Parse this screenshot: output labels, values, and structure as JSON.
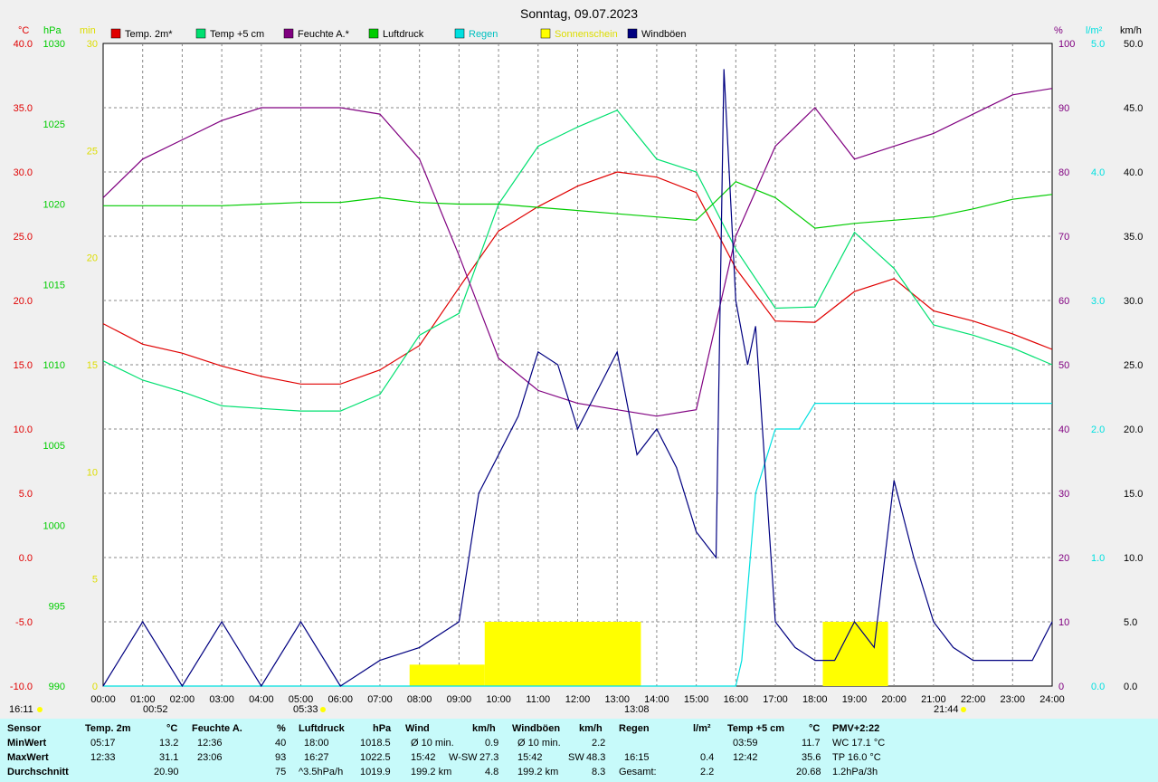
{
  "title": "Sonntag, 09.07.2023",
  "colors": {
    "temp2m": "#e00000",
    "temp5cm": "#00e070",
    "feuchte": "#800080",
    "luftdruck": "#00cc00",
    "regen": "#00e0e0",
    "sonne": "#ffff00",
    "wind": "#000080"
  },
  "axes_units": {
    "left1": "°C",
    "left2": "hPa",
    "left3": "min",
    "right1": "%",
    "right2": "l/m²",
    "right3": "km/h"
  },
  "legend": [
    {
      "label": "Temp. 2m*",
      "color": "#e00000"
    },
    {
      "label": "Temp +5 cm",
      "color": "#00e070"
    },
    {
      "label": "Feuchte A.*",
      "color": "#800080"
    },
    {
      "label": "Luftdruck",
      "color": "#00cc00"
    },
    {
      "label": "Regen",
      "color": "#00e0e0"
    },
    {
      "label": "Sonnenschein",
      "color": "#ffff00"
    },
    {
      "label": "Windböen",
      "color": "#000080"
    }
  ],
  "chart_data": {
    "type": "line",
    "title": "Sonntag, 09.07.2023",
    "x_ticks": [
      "00:00",
      "01:00",
      "02:00",
      "03:00",
      "04:00",
      "05:00",
      "06:00",
      "07:00",
      "08:00",
      "09:00",
      "10:00",
      "11:00",
      "12:00",
      "13:00",
      "14:00",
      "15:00",
      "16:00",
      "17:00",
      "18:00",
      "19:00",
      "20:00",
      "21:00",
      "22:00",
      "23:00",
      "24:00"
    ],
    "y_axes": {
      "temp_c": {
        "ticks": [
          "40.0",
          "35.0",
          "30.0",
          "25.0",
          "20.0",
          "15.0",
          "10.0",
          "5.0",
          "0.0",
          "-5.0",
          "-10.0"
        ],
        "range": [
          -10,
          40
        ]
      },
      "pressure_hpa": {
        "ticks": [
          "1030",
          "1025",
          "1020",
          "1015",
          "1010",
          "1005",
          "1000",
          "995",
          "990"
        ],
        "range": [
          990,
          1030
        ]
      },
      "sun_min": {
        "ticks": [
          "30",
          "25",
          "20",
          "15",
          "10",
          "5",
          "0"
        ],
        "range": [
          0,
          30
        ]
      },
      "humidity_pct": {
        "ticks": [
          "100",
          "90",
          "80",
          "70",
          "60",
          "50",
          "40",
          "30",
          "20",
          "10",
          "0"
        ],
        "range": [
          0,
          100
        ]
      },
      "rain_lm2": {
        "ticks": [
          "5.0",
          "4.0",
          "3.0",
          "2.0",
          "1.0",
          "0.0"
        ],
        "range": [
          0,
          5
        ]
      },
      "wind_kmh": {
        "ticks": [
          "50.0",
          "45.0",
          "40.0",
          "35.0",
          "30.0",
          "25.0",
          "20.0",
          "15.0",
          "10.0",
          "5.0",
          "0.0"
        ],
        "range": [
          0,
          50
        ]
      }
    },
    "series": [
      {
        "name": "Temp. 2m*",
        "axis": "temp_c",
        "x": [
          0,
          1,
          2,
          3,
          4,
          5,
          6,
          7,
          8,
          9,
          10,
          11,
          12,
          13,
          14,
          15,
          16,
          17,
          18,
          19,
          20,
          21,
          22,
          23,
          24
        ],
        "values": [
          18.2,
          16.6,
          15.9,
          14.9,
          14.1,
          13.5,
          13.5,
          14.6,
          16.5,
          21.0,
          25.4,
          27.3,
          28.9,
          30.0,
          29.6,
          28.4,
          22.5,
          18.4,
          18.3,
          20.7,
          21.7,
          19.2,
          18.4,
          17.4,
          16.2
        ]
      },
      {
        "name": "Temp +5 cm",
        "axis": "temp_c",
        "x": [
          0,
          1,
          2,
          3,
          4,
          5,
          6,
          7,
          8,
          9,
          10,
          11,
          12,
          13,
          14,
          15,
          16,
          17,
          18,
          19,
          20,
          21,
          22,
          23,
          24
        ],
        "values": [
          15.3,
          13.8,
          12.9,
          11.8,
          11.6,
          11.4,
          11.4,
          12.7,
          17.3,
          19.0,
          27.5,
          32.0,
          33.5,
          34.8,
          31.0,
          30.0,
          24.0,
          19.4,
          19.5,
          25.3,
          22.5,
          18.1,
          17.3,
          16.3,
          15.0
        ]
      },
      {
        "name": "Feuchte A.*",
        "axis": "humidity_pct",
        "x": [
          0,
          1,
          2,
          3,
          4,
          5,
          6,
          7,
          8,
          9,
          10,
          11,
          12,
          13,
          14,
          15,
          16,
          17,
          18,
          19,
          20,
          21,
          22,
          23,
          24
        ],
        "values": [
          76,
          82,
          85,
          88,
          90,
          90,
          90,
          89,
          82,
          67,
          51,
          46,
          44,
          43,
          42,
          43,
          70,
          84,
          90,
          82,
          84,
          86,
          89,
          92,
          93
        ]
      },
      {
        "name": "Luftdruck",
        "axis": "pressure_hpa",
        "x": [
          0,
          1,
          2,
          3,
          4,
          5,
          6,
          7,
          8,
          9,
          10,
          11,
          12,
          13,
          14,
          15,
          16,
          17,
          18,
          19,
          20,
          21,
          22,
          23,
          24
        ],
        "values": [
          1019.9,
          1019.9,
          1019.9,
          1019.9,
          1020.0,
          1020.1,
          1020.1,
          1020.4,
          1020.1,
          1020.0,
          1020.0,
          1019.8,
          1019.6,
          1019.4,
          1019.2,
          1019.0,
          1021.4,
          1020.4,
          1018.5,
          1018.8,
          1019.0,
          1019.2,
          1019.7,
          1020.3,
          1020.6
        ]
      },
      {
        "name": "Regen",
        "axis": "rain_lm2",
        "x": [
          0,
          16.0,
          16.15,
          16.5,
          17.0,
          17.6,
          18.0,
          18.1,
          24
        ],
        "values": [
          0,
          0,
          0.2,
          1.5,
          2.0,
          2.0,
          2.2,
          2.2,
          2.2
        ]
      },
      {
        "name": "Sonnenschein",
        "axis": "sun_min",
        "x": [
          7.75,
          9.65,
          9.65,
          13.6,
          18.2,
          19.85
        ],
        "values": [
          1,
          1,
          3,
          3,
          3,
          3
        ]
      },
      {
        "name": "Windböen",
        "axis": "wind_kmh",
        "x": [
          0,
          1,
          2,
          3,
          4,
          5,
          6,
          7,
          8,
          9,
          9.5,
          10,
          10.5,
          11,
          11.5,
          12,
          12.5,
          13,
          13.5,
          14,
          14.5,
          15,
          15.5,
          15.7,
          16,
          16.3,
          16.5,
          17,
          17.5,
          18,
          18.5,
          19,
          19.5,
          20,
          20.5,
          21,
          21.5,
          22,
          22.5,
          23,
          23.5,
          24
        ],
        "values": [
          0,
          5,
          0,
          5,
          0,
          5,
          0,
          2,
          3,
          5,
          15,
          18,
          21,
          26,
          25,
          20,
          23,
          26,
          18,
          20,
          17,
          12,
          10,
          48,
          30,
          25,
          28,
          5,
          3,
          2,
          2,
          5,
          3,
          16,
          10,
          5,
          3,
          2,
          2,
          2,
          2,
          5
        ]
      }
    ],
    "legend_position": "top",
    "grid": true
  },
  "markers": {
    "wind_top": "16:11",
    "sun_up_left": "00:52",
    "sunrise": "05:33",
    "noon": "13:08",
    "sunset": "21:44"
  },
  "stats": {
    "row_labels": [
      "Sensor",
      "MinWert",
      "MaxWert",
      "Durchschnitt"
    ],
    "temp2m": {
      "header": "Temp. 2m",
      "unit": "°C",
      "min_time": "05:17",
      "min": "13.2",
      "max_time": "12:33",
      "max": "31.1",
      "avg": "20.90"
    },
    "feuchte": {
      "header": "Feuchte A.",
      "unit": "%",
      "min_time": "12:36",
      "min": "40",
      "max_time": "23:06",
      "max": "93",
      "avg": "75"
    },
    "druck": {
      "header": "Luftdruck",
      "unit": "hPa",
      "min_time": "18:00",
      "min": "1018.5",
      "max_time": "16:27",
      "max": "1022.5",
      "avg_label": "^3.5hPa/h",
      "avg": "1019.9"
    },
    "wind": {
      "header": "Wind",
      "unit": "km/h",
      "min_label": "Ø 10 min.",
      "min": "0.9",
      "max_time": "15:42",
      "max_dir": "W-SW",
      "max": "27.3",
      "km": "199.2 km",
      "avg": "4.8"
    },
    "boeen": {
      "header": "Windböen",
      "unit": "km/h",
      "min_label": "Ø 10 min.",
      "min": "2.2",
      "max_time": "15:42",
      "max_dir": "SW",
      "max": "48.3",
      "km": "199.2 km",
      "avg": "8.3"
    },
    "regen": {
      "header": "Regen",
      "unit": "l/m²",
      "max_time": "16:15",
      "max": "0.4",
      "total_label": "Gesamt:",
      "total": "2.2"
    },
    "temp5": {
      "header": "Temp +5 cm",
      "unit": "°C",
      "min_time": "03:59",
      "min": "11.7",
      "max_time": "12:42",
      "max": "35.6",
      "avg": "20.68"
    },
    "pmv": {
      "header": "PMV+2:22",
      "wc": "WC 17.1 °C",
      "tp": "TP 16.0 °C",
      "trend": "1.2hPa/3h"
    }
  }
}
